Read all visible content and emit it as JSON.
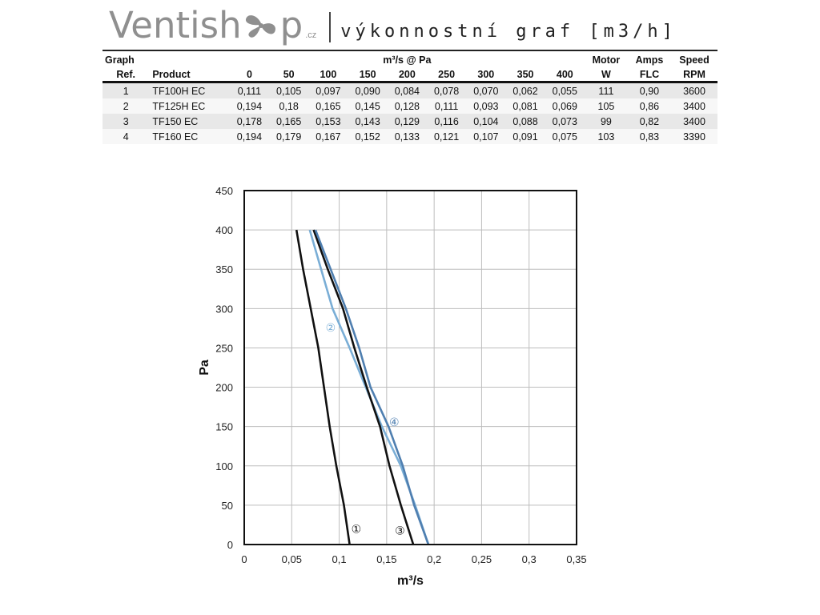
{
  "header": {
    "logo_part1": "Ventish",
    "logo_part2": "p",
    "logo_tld": ".cz",
    "tagline": "výkonnostní graf [m3/h]",
    "logo_color": "#8f8f8f"
  },
  "table": {
    "group_header": "m³/s @ Pa",
    "header_top": {
      "ref": "Graph",
      "motor": "Motor",
      "amps": "Amps",
      "speed": "Speed"
    },
    "header_bottom": {
      "ref": "Ref.",
      "product": "Product",
      "pressures": [
        "0",
        "50",
        "100",
        "150",
        "200",
        "250",
        "300",
        "350",
        "400"
      ],
      "motor": "W",
      "amps": "FLC",
      "speed": "RPM"
    },
    "rows": [
      {
        "ref": "1",
        "product": "TF100H EC",
        "flows": [
          "0,111",
          "0,105",
          "0,097",
          "0,090",
          "0,084",
          "0,078",
          "0,070",
          "0,062",
          "0,055"
        ],
        "motor": "111",
        "amps": "0,90",
        "speed": "3600"
      },
      {
        "ref": "2",
        "product": "TF125H EC",
        "flows": [
          "0,194",
          "0,18",
          "0,165",
          "0,145",
          "0,128",
          "0,111",
          "0,093",
          "0,081",
          "0,069"
        ],
        "motor": "105",
        "amps": "0,86",
        "speed": "3400"
      },
      {
        "ref": "3",
        "product": "TF150 EC",
        "flows": [
          "0,178",
          "0,165",
          "0,153",
          "0,143",
          "0,129",
          "0,116",
          "0,104",
          "0,088",
          "0,073"
        ],
        "motor": "99",
        "amps": "0,82",
        "speed": "3400"
      },
      {
        "ref": "4",
        "product": "TF160 EC",
        "flows": [
          "0,194",
          "0,179",
          "0,167",
          "0,152",
          "0,133",
          "0,121",
          "0,107",
          "0,091",
          "0,075"
        ],
        "motor": "103",
        "amps": "0,83",
        "speed": "3390"
      }
    ]
  },
  "chart_data": {
    "type": "line",
    "xlabel": "m³/s",
    "ylabel": "Pa",
    "xlim": [
      0,
      0.35
    ],
    "ylim": [
      0,
      450
    ],
    "xticks": [
      0,
      0.05,
      0.1,
      0.15,
      0.2,
      0.25,
      0.3,
      0.35
    ],
    "xtick_labels": [
      "0",
      "0,05",
      "0,1",
      "0,15",
      "0,2",
      "0,25",
      "0,3",
      "0,35"
    ],
    "yticks": [
      0,
      50,
      100,
      150,
      200,
      250,
      300,
      350,
      400,
      450
    ],
    "ytick_labels": [
      "0",
      "50",
      "100",
      "150",
      "200",
      "250",
      "300",
      "350",
      "400",
      "450"
    ],
    "grid": true,
    "series": [
      {
        "label": "①",
        "color": "#111111",
        "x": [
          0.111,
          0.105,
          0.097,
          0.09,
          0.084,
          0.078,
          0.07,
          0.062,
          0.055
        ],
        "y": [
          0,
          50,
          100,
          150,
          200,
          250,
          300,
          350,
          400
        ],
        "label_at": [
          0.118,
          20
        ]
      },
      {
        "label": "②",
        "color": "#7aaed6",
        "x": [
          0.194,
          0.18,
          0.165,
          0.145,
          0.128,
          0.111,
          0.093,
          0.081,
          0.069
        ],
        "y": [
          0,
          50,
          100,
          150,
          200,
          250,
          300,
          350,
          400
        ],
        "label_at": [
          0.091,
          276
        ]
      },
      {
        "label": "③",
        "color": "#111111",
        "x": [
          0.178,
          0.165,
          0.153,
          0.143,
          0.129,
          0.116,
          0.104,
          0.088,
          0.073
        ],
        "y": [
          0,
          50,
          100,
          150,
          200,
          250,
          300,
          350,
          400
        ],
        "label_at": [
          0.164,
          18
        ]
      },
      {
        "label": "④",
        "color": "#4f7fb0",
        "x": [
          0.194,
          0.179,
          0.167,
          0.152,
          0.133,
          0.121,
          0.107,
          0.091,
          0.075
        ],
        "y": [
          0,
          50,
          100,
          150,
          200,
          250,
          300,
          350,
          400
        ],
        "label_at": [
          0.158,
          156
        ]
      }
    ]
  }
}
